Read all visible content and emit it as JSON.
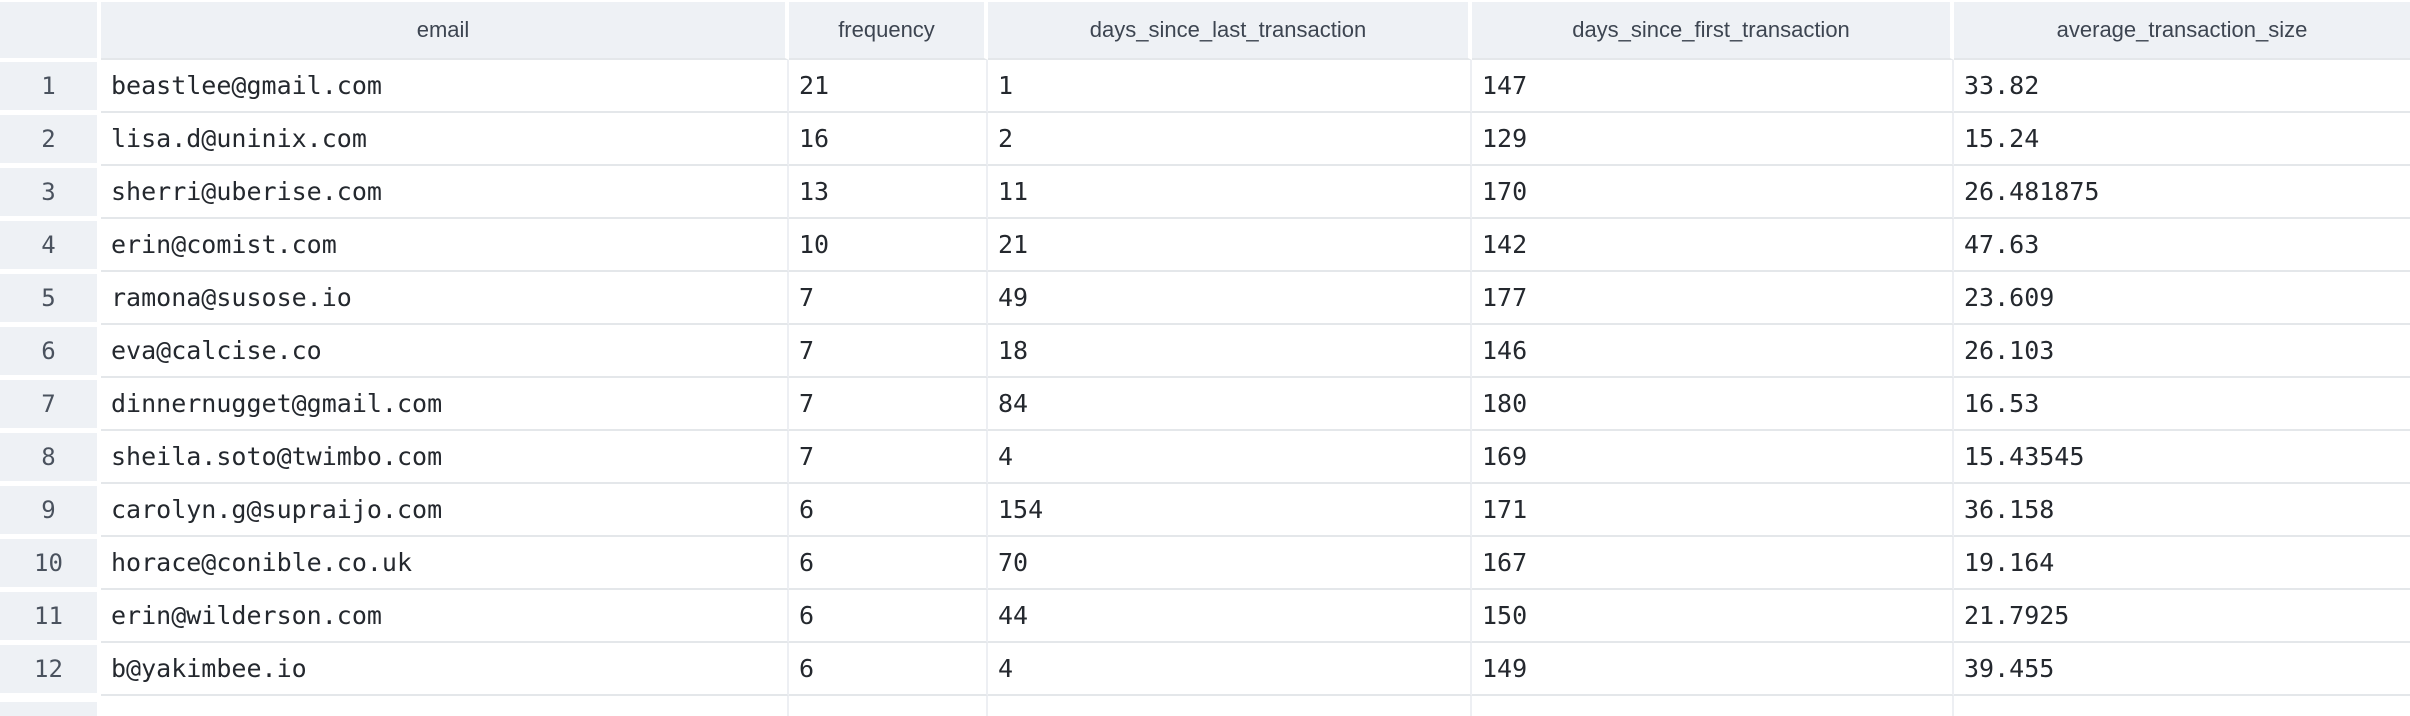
{
  "table": {
    "columns": [
      {
        "id": "index",
        "label": ""
      },
      {
        "id": "email",
        "label": "email"
      },
      {
        "id": "frequency",
        "label": "frequency"
      },
      {
        "id": "days_since_last_transaction",
        "label": "days_since_last_transaction"
      },
      {
        "id": "days_since_first_transaction",
        "label": "days_since_first_transaction"
      },
      {
        "id": "average_transaction_size",
        "label": "average_transaction_size"
      }
    ],
    "rows": [
      {
        "index": "1",
        "email": "beastlee@gmail.com",
        "frequency": "21",
        "days_since_last_transaction": "1",
        "days_since_first_transaction": "147",
        "average_transaction_size": "33.82"
      },
      {
        "index": "2",
        "email": "lisa.d@uninix.com",
        "frequency": "16",
        "days_since_last_transaction": "2",
        "days_since_first_transaction": "129",
        "average_transaction_size": "15.24"
      },
      {
        "index": "3",
        "email": "sherri@uberise.com",
        "frequency": "13",
        "days_since_last_transaction": "11",
        "days_since_first_transaction": "170",
        "average_transaction_size": "26.481875"
      },
      {
        "index": "4",
        "email": "erin@comist.com",
        "frequency": "10",
        "days_since_last_transaction": "21",
        "days_since_first_transaction": "142",
        "average_transaction_size": "47.63"
      },
      {
        "index": "5",
        "email": "ramona@susose.io",
        "frequency": "7",
        "days_since_last_transaction": "49",
        "days_since_first_transaction": "177",
        "average_transaction_size": "23.609"
      },
      {
        "index": "6",
        "email": "eva@calcise.co",
        "frequency": "7",
        "days_since_last_transaction": "18",
        "days_since_first_transaction": "146",
        "average_transaction_size": "26.103"
      },
      {
        "index": "7",
        "email": "dinnernugget@gmail.com",
        "frequency": "7",
        "days_since_last_transaction": "84",
        "days_since_first_transaction": "180",
        "average_transaction_size": "16.53"
      },
      {
        "index": "8",
        "email": "sheila.soto@twimbo.com",
        "frequency": "7",
        "days_since_last_transaction": "4",
        "days_since_first_transaction": "169",
        "average_transaction_size": "15.43545"
      },
      {
        "index": "9",
        "email": "carolyn.g@supraijo.com",
        "frequency": "6",
        "days_since_last_transaction": "154",
        "days_since_first_transaction": "171",
        "average_transaction_size": "36.158"
      },
      {
        "index": "10",
        "email": "horace@conible.co.uk",
        "frequency": "6",
        "days_since_last_transaction": "70",
        "days_since_first_transaction": "167",
        "average_transaction_size": "19.164"
      },
      {
        "index": "11",
        "email": "erin@wilderson.com",
        "frequency": "6",
        "days_since_last_transaction": "44",
        "days_since_first_transaction": "150",
        "average_transaction_size": "21.7925"
      },
      {
        "index": "12",
        "email": "b@yakimbee.io",
        "frequency": "6",
        "days_since_last_transaction": "4",
        "days_since_first_transaction": "149",
        "average_transaction_size": "39.455"
      }
    ]
  },
  "colors": {
    "header_bg": "#eef1f5",
    "row_border": "#e4e7ea",
    "column_border": "#edeff3",
    "header_text": "#3d4551",
    "cell_text": "#24282e",
    "index_text": "#4a525e"
  }
}
